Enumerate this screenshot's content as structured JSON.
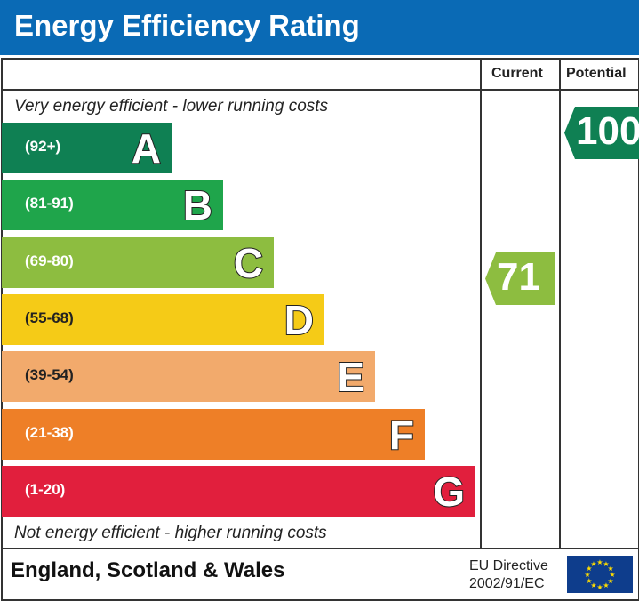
{
  "title": "Energy Efficiency Rating",
  "columns": {
    "current": "Current",
    "potential": "Potential"
  },
  "top_note": "Very energy efficient - lower running costs",
  "bottom_note": "Not energy efficient - higher running costs",
  "chart_data": {
    "type": "bar",
    "bands": [
      {
        "letter": "A",
        "range": "(92+)",
        "color": "#0f8053"
      },
      {
        "letter": "B",
        "range": "(81-91)",
        "color": "#1fa54b"
      },
      {
        "letter": "C",
        "range": "(69-80)",
        "color": "#8dbd40"
      },
      {
        "letter": "D",
        "range": "(55-68)",
        "color": "#f5cb17"
      },
      {
        "letter": "E",
        "range": "(39-54)",
        "color": "#f2aa6c"
      },
      {
        "letter": "F",
        "range": "(21-38)",
        "color": "#ee7f27"
      },
      {
        "letter": "G",
        "range": "(1-20)",
        "color": "#e11f3d"
      }
    ],
    "current": {
      "value": "71",
      "band": "C",
      "color": "#8dbd40"
    },
    "potential": {
      "value": "100",
      "band": "A",
      "color": "#0f8053"
    }
  },
  "footer": {
    "region": "England, Scotland & Wales",
    "directive_line1": "EU Directive",
    "directive_line2": "2002/91/EC",
    "flag_icon": "eu-flag-icon"
  }
}
